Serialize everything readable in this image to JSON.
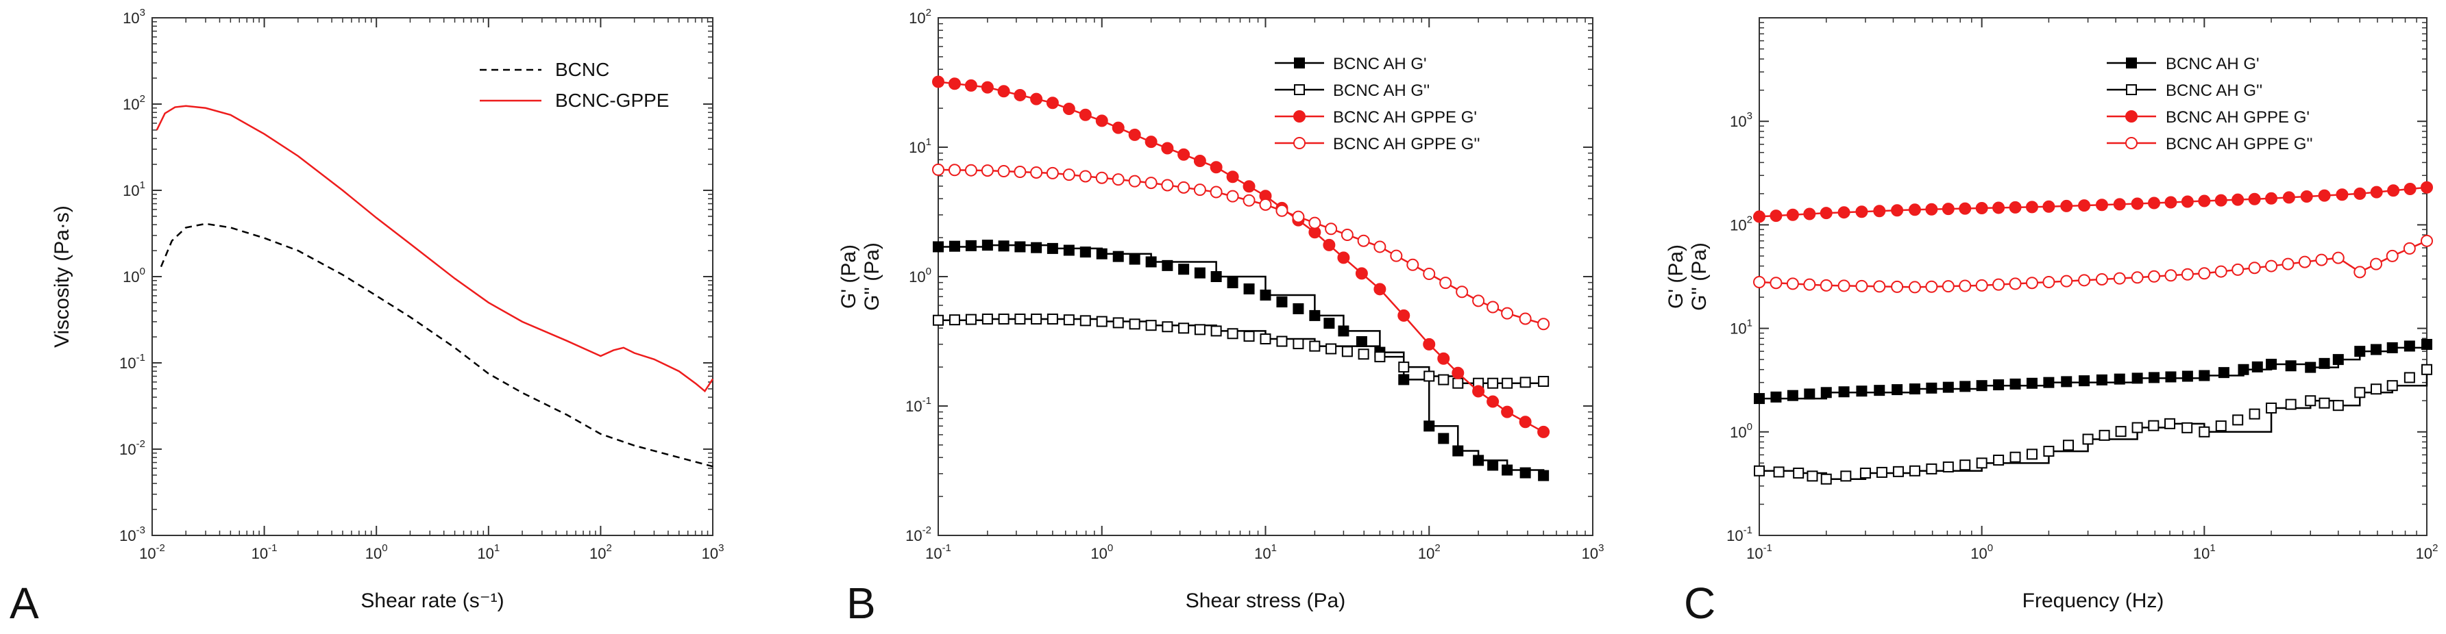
{
  "colors": {
    "black": "#000000",
    "red": "#ee1c1c",
    "axis": "#333333"
  },
  "chart_data": [
    {
      "type": "line",
      "panel_label": "A",
      "xlabel": "Shear rate (s⁻¹)",
      "ylabel": "Viscosity (Pa·s)",
      "xscale": "log",
      "yscale": "log",
      "xlim": [
        0.01,
        1000
      ],
      "ylim": [
        0.001,
        1000
      ],
      "xticks": [
        {
          "value": 0.01,
          "base": "10",
          "exp": "-2"
        },
        {
          "value": 0.1,
          "base": "10",
          "exp": "-1"
        },
        {
          "value": 1,
          "base": "10",
          "exp": "0"
        },
        {
          "value": 10,
          "base": "10",
          "exp": "1"
        },
        {
          "value": 100,
          "base": "10",
          "exp": "2"
        },
        {
          "value": 1000,
          "base": "10",
          "exp": "3"
        }
      ],
      "yticks": [
        {
          "value": 0.001,
          "base": "10",
          "exp": "-3"
        },
        {
          "value": 0.01,
          "base": "10",
          "exp": "-2"
        },
        {
          "value": 0.1,
          "base": "10",
          "exp": "-1"
        },
        {
          "value": 1,
          "base": "10",
          "exp": "0"
        },
        {
          "value": 10,
          "base": "10",
          "exp": "1"
        },
        {
          "value": 100,
          "base": "10",
          "exp": "2"
        },
        {
          "value": 1000,
          "base": "10",
          "exp": "3"
        }
      ],
      "legend_position": "top-right",
      "series": [
        {
          "name": "BCNC",
          "color": "#000000",
          "style": "dashed",
          "marker": "none",
          "x": [
            0.012,
            0.015,
            0.02,
            0.03,
            0.05,
            0.1,
            0.2,
            0.5,
            1,
            2,
            5,
            10,
            20,
            50,
            100,
            200,
            500,
            1000
          ],
          "y": [
            1.3,
            2.6,
            3.7,
            4.1,
            3.7,
            2.8,
            2.0,
            1.05,
            0.6,
            0.34,
            0.15,
            0.075,
            0.045,
            0.025,
            0.015,
            0.011,
            0.008,
            0.0063
          ]
        },
        {
          "name": "BCNC-GPPE",
          "color": "#ee1c1c",
          "style": "solid",
          "marker": "none",
          "x": [
            0.011,
            0.013,
            0.016,
            0.02,
            0.03,
            0.05,
            0.1,
            0.2,
            0.5,
            1,
            2,
            5,
            10,
            20,
            50,
            100,
            130,
            160,
            200,
            300,
            500,
            700,
            850,
            1000
          ],
          "y": [
            50,
            78,
            92,
            95,
            90,
            75,
            45,
            25,
            10,
            4.8,
            2.4,
            0.95,
            0.5,
            0.3,
            0.18,
            0.12,
            0.14,
            0.15,
            0.13,
            0.11,
            0.08,
            0.058,
            0.047,
            0.065
          ]
        }
      ]
    },
    {
      "type": "scatter",
      "panel_label": "B",
      "xlabel": "Shear stress (Pa)",
      "ylabel": [
        "G' (Pa)",
        "G'' (Pa)"
      ],
      "xscale": "log",
      "yscale": "log",
      "xlim": [
        0.1,
        1000
      ],
      "ylim": [
        0.01,
        100
      ],
      "xticks": [
        {
          "value": 0.1,
          "base": "10",
          "exp": "-1"
        },
        {
          "value": 1,
          "base": "10",
          "exp": "0"
        },
        {
          "value": 10,
          "base": "10",
          "exp": "1"
        },
        {
          "value": 100,
          "base": "10",
          "exp": "2"
        },
        {
          "value": 1000,
          "base": "10",
          "exp": "3"
        }
      ],
      "yticks": [
        {
          "value": 0.01,
          "base": "10",
          "exp": "-2"
        },
        {
          "value": 0.1,
          "base": "10",
          "exp": "-1"
        },
        {
          "value": 1,
          "base": "10",
          "exp": "0"
        },
        {
          "value": 10,
          "base": "10",
          "exp": "1"
        },
        {
          "value": 100,
          "base": "10",
          "exp": "2"
        }
      ],
      "legend_position": "top-right",
      "series": [
        {
          "name": "BCNC AH G'",
          "color": "#000000",
          "marker": "square",
          "filled": true,
          "step": true,
          "x": [
            0.1,
            0.2,
            0.5,
            1,
            2,
            5,
            10,
            20,
            30,
            50,
            70,
            100,
            150,
            200,
            300,
            500
          ],
          "y": [
            1.7,
            1.75,
            1.65,
            1.5,
            1.3,
            1.0,
            0.72,
            0.5,
            0.38,
            0.26,
            0.16,
            0.07,
            0.045,
            0.038,
            0.032,
            0.029
          ]
        },
        {
          "name": "BCNC AH G''",
          "color": "#000000",
          "marker": "square",
          "filled": false,
          "step": true,
          "x": [
            0.1,
            0.2,
            0.5,
            1,
            2,
            5,
            10,
            20,
            50,
            70,
            100,
            150,
            200,
            300,
            500
          ],
          "y": [
            0.46,
            0.47,
            0.47,
            0.45,
            0.42,
            0.38,
            0.33,
            0.29,
            0.24,
            0.2,
            0.17,
            0.15,
            0.15,
            0.15,
            0.155
          ]
        },
        {
          "name": "BCNC AH GPPE G'",
          "color": "#ee1c1c",
          "marker": "circle",
          "filled": true,
          "step": false,
          "x": [
            0.1,
            0.2,
            0.5,
            1,
            2,
            5,
            10,
            20,
            30,
            50,
            70,
            100,
            150,
            200,
            300,
            500
          ],
          "y": [
            32,
            29,
            22,
            16,
            11,
            7,
            4.2,
            2.2,
            1.4,
            0.8,
            0.5,
            0.3,
            0.18,
            0.13,
            0.09,
            0.063
          ]
        },
        {
          "name": "BCNC AH GPPE G''",
          "color": "#ee1c1c",
          "marker": "circle",
          "filled": false,
          "step": false,
          "x": [
            0.1,
            0.2,
            0.5,
            1,
            2,
            5,
            10,
            20,
            50,
            100,
            200,
            300,
            500
          ],
          "y": [
            6.7,
            6.6,
            6.3,
            5.8,
            5.3,
            4.5,
            3.6,
            2.6,
            1.7,
            1.05,
            0.65,
            0.52,
            0.43
          ]
        }
      ]
    },
    {
      "type": "scatter",
      "panel_label": "C",
      "xlabel": "Frequency (Hz)",
      "ylabel": [
        "G' (Pa)",
        "G'' (Pa)"
      ],
      "xscale": "log",
      "yscale": "log",
      "xlim": [
        0.1,
        100
      ],
      "ylim": [
        0.1,
        10000
      ],
      "xticks": [
        {
          "value": 0.1,
          "base": "10",
          "exp": "-1"
        },
        {
          "value": 1,
          "base": "10",
          "exp": "0"
        },
        {
          "value": 10,
          "base": "10",
          "exp": "1"
        },
        {
          "value": 100,
          "base": "10",
          "exp": "2"
        }
      ],
      "yticks": [
        {
          "value": 0.1,
          "base": "10",
          "exp": "-1"
        },
        {
          "value": 1,
          "base": "10",
          "exp": "0"
        },
        {
          "value": 10,
          "base": "10",
          "exp": "1"
        },
        {
          "value": 100,
          "base": "10",
          "exp": "2"
        },
        {
          "value": 1000,
          "base": "10",
          "exp": "3"
        }
      ],
      "legend_position": "top-right",
      "series": [
        {
          "name": "BCNC AH G'",
          "color": "#000000",
          "marker": "square",
          "filled": true,
          "step": true,
          "x": [
            0.1,
            0.2,
            0.5,
            1,
            2,
            5,
            10,
            15,
            20,
            30,
            40,
            50,
            70,
            100
          ],
          "y": [
            2.1,
            2.4,
            2.6,
            2.8,
            3.0,
            3.3,
            3.5,
            4.0,
            4.5,
            4.2,
            5.0,
            6.0,
            6.5,
            7.0
          ]
        },
        {
          "name": "BCNC AH G''",
          "color": "#000000",
          "marker": "square",
          "filled": false,
          "step": true,
          "x": [
            0.1,
            0.15,
            0.2,
            0.3,
            0.5,
            1,
            2,
            3,
            5,
            7,
            10,
            20,
            30,
            40,
            50,
            70,
            100
          ],
          "y": [
            0.42,
            0.4,
            0.35,
            0.4,
            0.42,
            0.5,
            0.65,
            0.85,
            1.1,
            1.2,
            1.0,
            1.7,
            2.0,
            1.8,
            2.4,
            2.8,
            4.0
          ]
        },
        {
          "name": "BCNC AH GPPE G'",
          "color": "#ee1c1c",
          "marker": "circle",
          "filled": true,
          "step": false,
          "x": [
            0.1,
            0.2,
            0.5,
            1,
            2,
            5,
            10,
            20,
            50,
            100
          ],
          "y": [
            120,
            130,
            140,
            145,
            150,
            160,
            170,
            180,
            200,
            230
          ]
        },
        {
          "name": "BCNC AH GPPE G''",
          "color": "#ee1c1c",
          "marker": "circle",
          "filled": false,
          "step": false,
          "x": [
            0.1,
            0.2,
            0.5,
            1,
            2,
            5,
            10,
            20,
            40,
            50,
            70,
            100
          ],
          "y": [
            28,
            26,
            25,
            26,
            28,
            31,
            34,
            40,
            48,
            35,
            50,
            70
          ]
        }
      ]
    }
  ]
}
